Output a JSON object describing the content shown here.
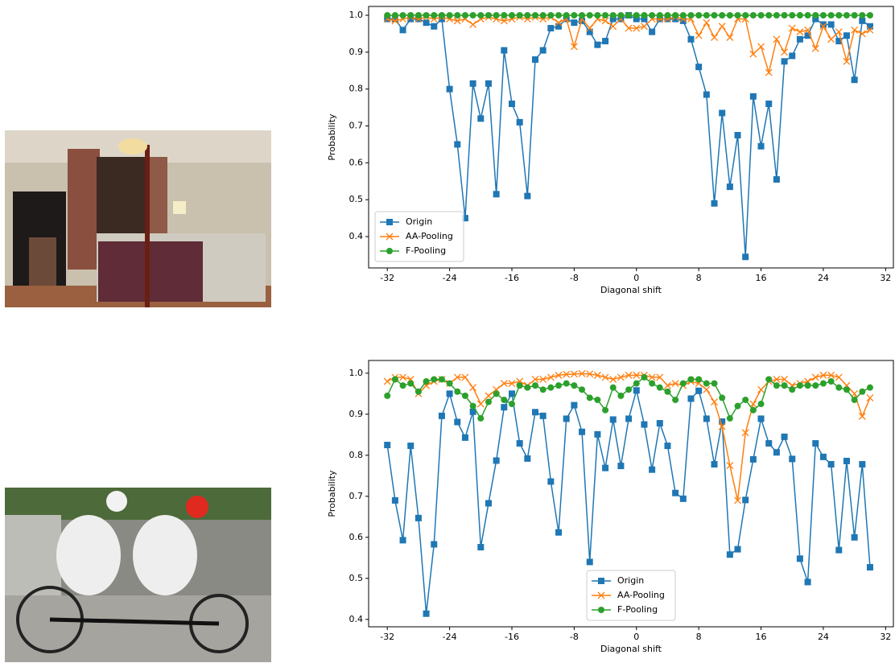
{
  "chart_data": [
    {
      "type": "line",
      "x_label": "Diagonal shift",
      "y_label": "Probability",
      "legend": "lower left",
      "x": [
        -32,
        -31,
        -30,
        -29,
        -28,
        -27,
        -26,
        -25,
        -24,
        -23,
        -22,
        -21,
        -20,
        -19,
        -18,
        -17,
        -16,
        -15,
        -14,
        -13,
        -12,
        -11,
        -10,
        -9,
        -8,
        -7,
        -6,
        -5,
        -4,
        -3,
        -2,
        -1,
        0,
        1,
        2,
        3,
        4,
        5,
        6,
        7,
        8,
        9,
        10,
        11,
        12,
        13,
        14,
        15,
        16,
        17,
        18,
        19,
        20,
        21,
        22,
        23,
        24,
        25,
        26,
        27,
        28,
        29,
        30
      ],
      "xlim": [
        -34.4,
        33.0
      ],
      "xticks": [
        -32,
        -24,
        -16,
        -8,
        0,
        8,
        16,
        24,
        32
      ],
      "ylim": [
        0.315,
        1.024
      ],
      "yticks": [
        0.4,
        0.5,
        0.6,
        0.7,
        0.8,
        0.9,
        {
          "value": 1,
          "label": "1.0"
        }
      ],
      "series": [
        {
          "name": "Origin",
          "color": "#1f77b4",
          "marker": "s",
          "values": [
            0.99,
            0.99,
            0.96,
            0.99,
            0.99,
            0.98,
            0.97,
            0.99,
            0.8,
            0.65,
            0.45,
            0.815,
            0.72,
            0.815,
            0.515,
            0.905,
            0.76,
            0.71,
            0.51,
            0.88,
            0.905,
            0.965,
            0.97,
            0.99,
            0.98,
            0.985,
            0.955,
            0.92,
            0.93,
            0.99,
            0.99,
            1.0,
            0.99,
            0.99,
            0.955,
            0.99,
            0.99,
            0.99,
            0.985,
            0.935,
            0.86,
            0.785,
            0.49,
            0.735,
            0.535,
            0.675,
            0.345,
            0.78,
            0.645,
            0.76,
            0.555,
            0.875,
            0.89,
            0.935,
            0.945,
            0.99,
            0.975,
            0.975,
            0.93,
            0.945,
            0.825,
            0.985,
            0.97
          ]
        },
        {
          "name": "AA-Pooling",
          "color": "#ff7f0e",
          "marker": "x",
          "values": [
            0.99,
            0.985,
            0.99,
            0.995,
            0.99,
            0.995,
            0.99,
            0.995,
            0.99,
            0.985,
            0.99,
            0.975,
            0.99,
            0.995,
            0.99,
            0.985,
            0.99,
            0.995,
            0.99,
            0.995,
            0.99,
            0.995,
            0.98,
            0.99,
            0.915,
            0.99,
            0.965,
            0.99,
            0.985,
            0.97,
            0.99,
            0.965,
            0.965,
            0.97,
            0.99,
            0.99,
            0.99,
            0.995,
            0.99,
            0.99,
            0.945,
            0.98,
            0.94,
            0.97,
            0.94,
            0.99,
            0.99,
            0.895,
            0.915,
            0.845,
            0.935,
            0.9,
            0.965,
            0.955,
            0.96,
            0.91,
            0.97,
            0.935,
            0.955,
            0.875,
            0.96,
            0.95,
            0.96
          ]
        },
        {
          "name": "F-Pooling",
          "color": "#2ca02c",
          "marker": "o",
          "values": [
            1,
            1,
            1,
            1,
            1,
            1,
            1,
            1,
            1,
            1,
            1,
            1,
            1,
            1,
            1,
            1,
            1,
            1,
            1,
            1,
            1,
            1,
            1,
            1,
            1,
            1,
            1,
            1,
            1,
            1,
            1,
            1,
            1,
            1,
            1,
            1,
            1,
            1,
            1,
            1,
            1,
            1,
            1,
            1,
            1,
            1,
            1,
            1,
            1,
            1,
            1,
            1,
            1,
            1,
            1,
            1,
            1,
            1,
            1,
            1,
            1,
            1,
            1
          ]
        }
      ]
    },
    {
      "type": "line",
      "x_label": "Diagonal shift",
      "y_label": "Probability",
      "legend": "lower center",
      "x": [
        -32,
        -31,
        -30,
        -29,
        -28,
        -27,
        -26,
        -25,
        -24,
        -23,
        -22,
        -21,
        -20,
        -19,
        -18,
        -17,
        -16,
        -15,
        -14,
        -13,
        -12,
        -11,
        -10,
        -9,
        -8,
        -7,
        -6,
        -5,
        -4,
        -3,
        -2,
        -1,
        0,
        1,
        2,
        3,
        4,
        5,
        6,
        7,
        8,
        9,
        10,
        11,
        12,
        13,
        14,
        15,
        16,
        17,
        18,
        19,
        20,
        21,
        22,
        23,
        24,
        25,
        26,
        27,
        28,
        29,
        30
      ],
      "xlim": [
        -34.4,
        33.0
      ],
      "xticks": [
        -32,
        -24,
        -16,
        -8,
        0,
        8,
        16,
        24,
        32
      ],
      "ylim": [
        0.382,
        1.031
      ],
      "yticks": [
        0.4,
        0.5,
        0.6,
        0.7,
        0.8,
        0.9,
        {
          "value": 1,
          "label": "1.0"
        }
      ],
      "series": [
        {
          "name": "Origin",
          "color": "#1f77b4",
          "marker": "s",
          "values": [
            0.825,
            0.69,
            0.593,
            0.823,
            0.647,
            0.414,
            0.583,
            0.896,
            0.95,
            0.881,
            0.843,
            0.906,
            0.576,
            0.683,
            0.787,
            0.917,
            0.95,
            0.829,
            0.792,
            0.905,
            0.896,
            0.736,
            0.612,
            0.889,
            0.922,
            0.857,
            0.54,
            0.851,
            0.769,
            0.887,
            0.774,
            0.889,
            0.958,
            0.875,
            0.765,
            0.878,
            0.823,
            0.708,
            0.694,
            0.938,
            0.957,
            0.889,
            0.778,
            0.882,
            0.558,
            0.571,
            0.691,
            0.79,
            0.889,
            0.829,
            0.807,
            0.845,
            0.791,
            0.548,
            0.491,
            0.829,
            0.796,
            0.778,
            0.569,
            0.786,
            0.6,
            0.778,
            0.527
          ]
        },
        {
          "name": "AA-Pooling",
          "color": "#ff7f0e",
          "marker": "x",
          "values": [
            0.98,
            0.99,
            0.99,
            0.985,
            0.95,
            0.97,
            0.98,
            0.985,
            0.975,
            0.99,
            0.99,
            0.965,
            0.925,
            0.945,
            0.96,
            0.975,
            0.975,
            0.98,
            0.97,
            0.985,
            0.985,
            0.99,
            0.995,
            0.997,
            0.998,
            0.999,
            0.998,
            0.995,
            0.99,
            0.985,
            0.99,
            0.995,
            0.995,
            0.995,
            0.99,
            0.99,
            0.97,
            0.975,
            0.97,
            0.98,
            0.975,
            0.96,
            0.93,
            0.87,
            0.775,
            0.69,
            0.855,
            0.925,
            0.96,
            0.98,
            0.985,
            0.985,
            0.97,
            0.975,
            0.98,
            0.99,
            0.995,
            0.995,
            0.99,
            0.97,
            0.95,
            0.895,
            0.94
          ]
        },
        {
          "name": "F-Pooling",
          "color": "#2ca02c",
          "marker": "o",
          "values": [
            0.945,
            0.985,
            0.97,
            0.975,
            0.955,
            0.98,
            0.985,
            0.985,
            0.975,
            0.955,
            0.945,
            0.92,
            0.89,
            0.93,
            0.95,
            0.935,
            0.925,
            0.97,
            0.965,
            0.97,
            0.96,
            0.965,
            0.97,
            0.975,
            0.97,
            0.96,
            0.94,
            0.935,
            0.91,
            0.965,
            0.945,
            0.96,
            0.975,
            0.99,
            0.975,
            0.965,
            0.955,
            0.935,
            0.975,
            0.985,
            0.985,
            0.975,
            0.975,
            0.94,
            0.89,
            0.92,
            0.935,
            0.91,
            0.925,
            0.985,
            0.97,
            0.97,
            0.96,
            0.97,
            0.97,
            0.97,
            0.975,
            0.98,
            0.965,
            0.96,
            0.935,
            0.955,
            0.965
          ]
        }
      ]
    }
  ]
}
